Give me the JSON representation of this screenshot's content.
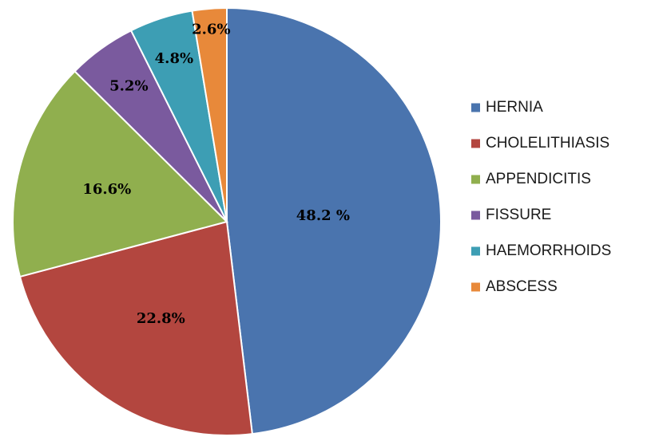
{
  "chart_data": {
    "type": "pie",
    "title": "",
    "legend_position": "right",
    "start": "12 o'clock, clockwise",
    "slices": [
      {
        "label": "HERNIA",
        "value": 48.2,
        "value_label": "48.2 %",
        "color": "#4A74AE"
      },
      {
        "label": "CHOLELITHIASIS",
        "value": 22.8,
        "value_label": "22.8%",
        "color": "#B3463F"
      },
      {
        "label": "APPENDICITIS",
        "value": 16.6,
        "value_label": "16.6%",
        "color": "#90AF4E"
      },
      {
        "label": "FISSURE",
        "value": 5.2,
        "value_label": "5.2%",
        "color": "#7A5A9E"
      },
      {
        "label": "HAEMORRHOIDS",
        "value": 4.8,
        "value_label": "4.8%",
        "color": "#3D9EB4"
      },
      {
        "label": "ABSCESS",
        "value": 2.6,
        "value_label": "2.6%",
        "color": "#E8893A"
      }
    ]
  }
}
